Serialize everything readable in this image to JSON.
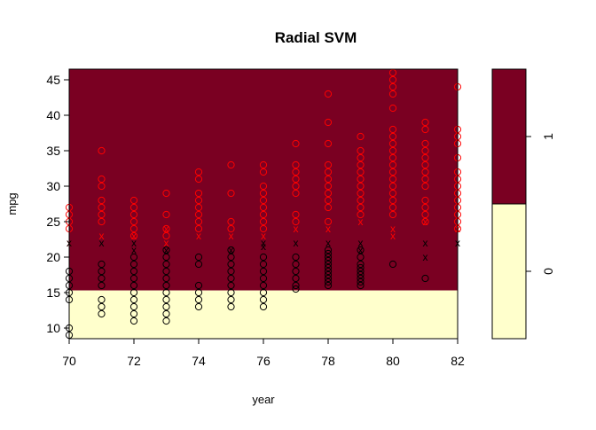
{
  "chart_data": {
    "type": "scatter",
    "title": "Radial SVM",
    "xlabel": "year",
    "ylabel": "mpg",
    "xlim": [
      70,
      82
    ],
    "ylim": [
      8.5,
      46.5
    ],
    "x_ticks": [
      70,
      72,
      74,
      76,
      78,
      80,
      82
    ],
    "y_ticks": [
      10,
      15,
      20,
      25,
      30,
      35,
      40,
      45
    ],
    "decision_boundary_mpg": 15.3,
    "regions": [
      {
        "class": "1",
        "color": "#7a0022",
        "mpg_from": 15.3,
        "mpg_to": 46.5
      },
      {
        "class": "0",
        "color": "#ffffcc",
        "mpg_from": 8.5,
        "mpg_to": 15.3
      }
    ],
    "colorkey": {
      "labels": [
        "0",
        "1"
      ],
      "colors": [
        "#ffffcc",
        "#7a0022"
      ],
      "split_fraction": 0.5
    },
    "series": [
      {
        "marker": "o",
        "color": "#ff0000",
        "points": [
          [
            70,
            27
          ],
          [
            70,
            26
          ],
          [
            70,
            25
          ],
          [
            70,
            24
          ],
          [
            71,
            35
          ],
          [
            71,
            31
          ],
          [
            71,
            30
          ],
          [
            71,
            28
          ],
          [
            71,
            27
          ],
          [
            71,
            26
          ],
          [
            71,
            25
          ],
          [
            72,
            28
          ],
          [
            72,
            27
          ],
          [
            72,
            26
          ],
          [
            72,
            25
          ],
          [
            72,
            24
          ],
          [
            72,
            23
          ],
          [
            73,
            29
          ],
          [
            73,
            26
          ],
          [
            73,
            24
          ],
          [
            73,
            23
          ],
          [
            74,
            32
          ],
          [
            74,
            31
          ],
          [
            74,
            29
          ],
          [
            74,
            28
          ],
          [
            74,
            27
          ],
          [
            74,
            26
          ],
          [
            74,
            25
          ],
          [
            74,
            24
          ],
          [
            75,
            33
          ],
          [
            75,
            29
          ],
          [
            75,
            25
          ],
          [
            75,
            24
          ],
          [
            76,
            33
          ],
          [
            76,
            32
          ],
          [
            76,
            30
          ],
          [
            76,
            29
          ],
          [
            76,
            28
          ],
          [
            76,
            27
          ],
          [
            76,
            26
          ],
          [
            76,
            25
          ],
          [
            76,
            24
          ],
          [
            77,
            36
          ],
          [
            77,
            33
          ],
          [
            77,
            32
          ],
          [
            77,
            31
          ],
          [
            77,
            30
          ],
          [
            77,
            29
          ],
          [
            77,
            26
          ],
          [
            77,
            25
          ],
          [
            78,
            43
          ],
          [
            78,
            39
          ],
          [
            78,
            36
          ],
          [
            78,
            33
          ],
          [
            78,
            32
          ],
          [
            78,
            31
          ],
          [
            78,
            30
          ],
          [
            78,
            29
          ],
          [
            78,
            28
          ],
          [
            78,
            27
          ],
          [
            78,
            25
          ],
          [
            79,
            37
          ],
          [
            79,
            35
          ],
          [
            79,
            34
          ],
          [
            79,
            33
          ],
          [
            79,
            32
          ],
          [
            79,
            31
          ],
          [
            79,
            30
          ],
          [
            79,
            29
          ],
          [
            79,
            28
          ],
          [
            79,
            27
          ],
          [
            79,
            26
          ],
          [
            80,
            46
          ],
          [
            80,
            45
          ],
          [
            80,
            44
          ],
          [
            80,
            43
          ],
          [
            80,
            41
          ],
          [
            80,
            38
          ],
          [
            80,
            37
          ],
          [
            80,
            36
          ],
          [
            80,
            35
          ],
          [
            80,
            34
          ],
          [
            80,
            33
          ],
          [
            80,
            32
          ],
          [
            80,
            31
          ],
          [
            80,
            30
          ],
          [
            80,
            29
          ],
          [
            80,
            28
          ],
          [
            80,
            27
          ],
          [
            80,
            26
          ],
          [
            81,
            39
          ],
          [
            81,
            38
          ],
          [
            81,
            36
          ],
          [
            81,
            35
          ],
          [
            81,
            34
          ],
          [
            81,
            33
          ],
          [
            81,
            32
          ],
          [
            81,
            31
          ],
          [
            81,
            30
          ],
          [
            81,
            28
          ],
          [
            81,
            27
          ],
          [
            81,
            26
          ],
          [
            81,
            25
          ],
          [
            82,
            44
          ],
          [
            82,
            38
          ],
          [
            82,
            37
          ],
          [
            82,
            36
          ],
          [
            82,
            34
          ],
          [
            82,
            32
          ],
          [
            82,
            31
          ],
          [
            82,
            30
          ],
          [
            82,
            29
          ],
          [
            82,
            28
          ],
          [
            82,
            27
          ],
          [
            82,
            26
          ],
          [
            82,
            25
          ],
          [
            82,
            24
          ]
        ]
      },
      {
        "marker": "x",
        "color": "#ff0000",
        "points": [
          [
            70,
            22
          ],
          [
            71,
            23
          ],
          [
            72,
            23
          ],
          [
            73,
            24
          ],
          [
            73,
            22
          ],
          [
            74,
            23
          ],
          [
            75,
            23
          ],
          [
            76,
            23
          ],
          [
            77,
            24
          ],
          [
            78,
            24
          ],
          [
            79,
            25
          ],
          [
            80,
            24
          ],
          [
            80,
            23
          ],
          [
            81,
            25
          ],
          [
            82,
            24
          ]
        ]
      },
      {
        "marker": "o",
        "color": "#000000",
        "points": [
          [
            70,
            18
          ],
          [
            70,
            17
          ],
          [
            70,
            16
          ],
          [
            70,
            15
          ],
          [
            70,
            14
          ],
          [
            70,
            10
          ],
          [
            70,
            9
          ],
          [
            71,
            19
          ],
          [
            71,
            18
          ],
          [
            71,
            17
          ],
          [
            71,
            16
          ],
          [
            71,
            14
          ],
          [
            71,
            13
          ],
          [
            71,
            12
          ],
          [
            72,
            20
          ],
          [
            72,
            19
          ],
          [
            72,
            18
          ],
          [
            72,
            17
          ],
          [
            72,
            16
          ],
          [
            72,
            15
          ],
          [
            72,
            14
          ],
          [
            72,
            13
          ],
          [
            72,
            12
          ],
          [
            72,
            11
          ],
          [
            73,
            21
          ],
          [
            73,
            20
          ],
          [
            73,
            19
          ],
          [
            73,
            18
          ],
          [
            73,
            17
          ],
          [
            73,
            16
          ],
          [
            73,
            15
          ],
          [
            73,
            14
          ],
          [
            73,
            13
          ],
          [
            73,
            12
          ],
          [
            73,
            11
          ],
          [
            74,
            20
          ],
          [
            74,
            19
          ],
          [
            74,
            16
          ],
          [
            74,
            15
          ],
          [
            74,
            14
          ],
          [
            74,
            13
          ],
          [
            75,
            21
          ],
          [
            75,
            20
          ],
          [
            75,
            19
          ],
          [
            75,
            18
          ],
          [
            75,
            17
          ],
          [
            75,
            16
          ],
          [
            75,
            15
          ],
          [
            75,
            14
          ],
          [
            75,
            13
          ],
          [
            76,
            20
          ],
          [
            76,
            19
          ],
          [
            76,
            18
          ],
          [
            76,
            17
          ],
          [
            76,
            16
          ],
          [
            76,
            15
          ],
          [
            76,
            14
          ],
          [
            76,
            13
          ],
          [
            77,
            20
          ],
          [
            77,
            19
          ],
          [
            77,
            18
          ],
          [
            77,
            17
          ],
          [
            77,
            16
          ],
          [
            77,
            15.5
          ],
          [
            78,
            21
          ],
          [
            78,
            20.5
          ],
          [
            78,
            20
          ],
          [
            78,
            19.5
          ],
          [
            78,
            19
          ],
          [
            78,
            18.5
          ],
          [
            78,
            18
          ],
          [
            78,
            17.5
          ],
          [
            78,
            17
          ],
          [
            78,
            16.5
          ],
          [
            78,
            16
          ],
          [
            79,
            21
          ],
          [
            79,
            20
          ],
          [
            79,
            19
          ],
          [
            79,
            18.5
          ],
          [
            79,
            18
          ],
          [
            79,
            17.5
          ],
          [
            79,
            17
          ],
          [
            79,
            16.5
          ],
          [
            79,
            16
          ],
          [
            80,
            19
          ],
          [
            81,
            17
          ]
        ]
      },
      {
        "marker": "x",
        "color": "#000000",
        "points": [
          [
            70,
            22
          ],
          [
            71,
            22
          ],
          [
            72,
            21
          ],
          [
            72,
            22
          ],
          [
            73,
            21
          ],
          [
            75,
            21
          ],
          [
            76,
            22
          ],
          [
            76,
            21.5
          ],
          [
            77,
            22
          ],
          [
            78,
            22
          ],
          [
            79,
            21
          ],
          [
            79,
            22
          ],
          [
            81,
            20
          ],
          [
            81,
            22
          ],
          [
            82,
            22
          ]
        ]
      }
    ]
  }
}
